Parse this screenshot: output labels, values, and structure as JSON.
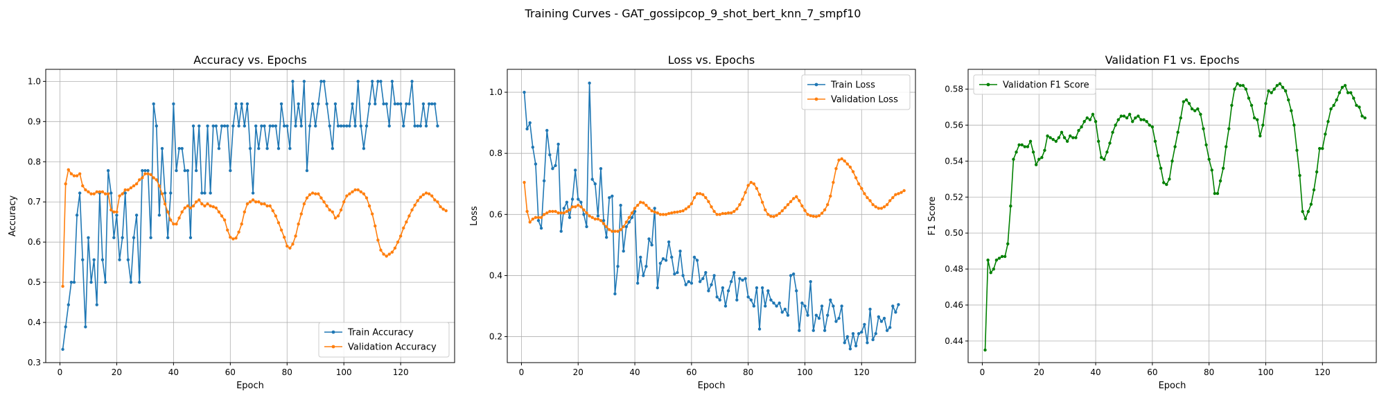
{
  "figure": {
    "suptitle": "Training Curves - GAT_gossipcop_9_shot_bert_knn_7_smpf10"
  },
  "chart_data": [
    {
      "type": "line",
      "title": "Accuracy vs. Epochs",
      "xlabel": "Epoch",
      "ylabel": "Accuracy",
      "xlim": [
        -5,
        139
      ],
      "ylim": [
        0.3,
        1.03
      ],
      "xticks": [
        0,
        20,
        40,
        60,
        80,
        100,
        120
      ],
      "yticks": [
        0.3,
        0.4,
        0.5,
        0.6,
        0.7,
        0.8,
        0.9,
        1.0
      ],
      "ytick_labels": [
        "0.3",
        "0.4",
        "0.5",
        "0.6",
        "0.7",
        "0.8",
        "0.9",
        "1.0"
      ],
      "grid": true,
      "legend": "lower-right",
      "series": [
        {
          "name": "Train Accuracy",
          "color": "#1f77b4",
          "values": [
            0.333,
            0.389,
            0.444,
            0.5,
            0.5,
            0.667,
            0.722,
            0.556,
            0.389,
            0.611,
            0.5,
            0.556,
            0.444,
            0.722,
            0.556,
            0.5,
            0.778,
            0.722,
            0.611,
            0.667,
            0.556,
            0.611,
            0.722,
            0.556,
            0.5,
            0.611,
            0.667,
            0.5,
            0.778,
            0.778,
            0.778,
            0.611,
            0.944,
            0.889,
            0.667,
            0.833,
            0.722,
            0.611,
            0.722,
            0.944,
            0.778,
            0.833,
            0.833,
            0.778,
            0.778,
            0.611,
            0.889,
            0.778,
            0.889,
            0.722,
            0.722,
            0.889,
            0.722,
            0.889,
            0.889,
            0.833,
            0.889,
            0.889,
            0.889,
            0.778,
            0.889,
            0.944,
            0.889,
            0.944,
            0.889,
            0.944,
            0.833,
            0.722,
            0.889,
            0.833,
            0.889,
            0.889,
            0.833,
            0.889,
            0.889,
            0.889,
            0.833,
            0.944,
            0.889,
            0.889,
            0.833,
            1.0,
            0.889,
            0.944,
            0.889,
            1.0,
            0.778,
            0.889,
            0.944,
            0.889,
            0.944,
            1.0,
            1.0,
            0.944,
            0.889,
            0.833,
            0.944,
            0.889,
            0.889,
            0.889,
            0.889,
            0.889,
            0.944,
            0.889,
            1.0,
            0.889,
            0.833,
            0.889,
            0.944,
            1.0,
            0.944,
            1.0,
            1.0,
            0.944,
            0.944,
            0.889,
            1.0,
            0.944,
            0.944,
            0.944,
            0.889,
            0.944,
            0.944,
            1.0,
            0.889,
            0.889,
            0.889,
            0.944,
            0.889,
            0.944,
            0.944,
            0.944,
            0.889
          ]
        },
        {
          "name": "Validation Accuracy",
          "color": "#ff7f0e",
          "values": [
            0.49,
            0.745,
            0.78,
            0.77,
            0.765,
            0.765,
            0.77,
            0.74,
            0.73,
            0.725,
            0.72,
            0.72,
            0.725,
            0.725,
            0.725,
            0.72,
            0.72,
            0.68,
            0.675,
            0.675,
            0.715,
            0.72,
            0.73,
            0.73,
            0.735,
            0.74,
            0.745,
            0.755,
            0.76,
            0.77,
            0.77,
            0.768,
            0.76,
            0.755,
            0.74,
            0.72,
            0.695,
            0.675,
            0.655,
            0.645,
            0.645,
            0.66,
            0.675,
            0.685,
            0.69,
            0.685,
            0.69,
            0.7,
            0.705,
            0.695,
            0.69,
            0.695,
            0.69,
            0.688,
            0.685,
            0.675,
            0.665,
            0.655,
            0.63,
            0.612,
            0.608,
            0.61,
            0.625,
            0.645,
            0.675,
            0.695,
            0.7,
            0.705,
            0.7,
            0.7,
            0.695,
            0.695,
            0.69,
            0.69,
            0.678,
            0.665,
            0.648,
            0.63,
            0.612,
            0.59,
            0.585,
            0.595,
            0.615,
            0.645,
            0.67,
            0.695,
            0.71,
            0.718,
            0.722,
            0.72,
            0.72,
            0.71,
            0.7,
            0.69,
            0.68,
            0.675,
            0.66,
            0.665,
            0.68,
            0.7,
            0.715,
            0.72,
            0.725,
            0.73,
            0.73,
            0.725,
            0.72,
            0.71,
            0.69,
            0.67,
            0.64,
            0.605,
            0.58,
            0.57,
            0.565,
            0.57,
            0.575,
            0.585,
            0.6,
            0.615,
            0.635,
            0.65,
            0.665,
            0.68,
            0.692,
            0.703,
            0.712,
            0.718,
            0.722,
            0.72,
            0.715,
            0.705,
            0.7,
            0.688,
            0.682,
            0.678
          ]
        }
      ]
    },
    {
      "type": "line",
      "title": "Loss vs. Epochs",
      "xlabel": "Epoch",
      "ylabel": "Loss",
      "xlim": [
        -5,
        139
      ],
      "ylim": [
        0.115,
        1.075
      ],
      "xticks": [
        0,
        20,
        40,
        60,
        80,
        100,
        120
      ],
      "yticks": [
        0.2,
        0.4,
        0.6,
        0.8,
        1.0
      ],
      "ytick_labels": [
        "0.2",
        "0.4",
        "0.6",
        "0.8",
        "1.0"
      ],
      "grid": true,
      "legend": "upper-right",
      "series": [
        {
          "name": "Train Loss",
          "color": "#1f77b4",
          "values": [
            1.0,
            0.88,
            0.9,
            0.82,
            0.765,
            0.58,
            0.555,
            0.71,
            0.875,
            0.795,
            0.75,
            0.76,
            0.83,
            0.545,
            0.62,
            0.64,
            0.59,
            0.65,
            0.745,
            0.65,
            0.64,
            0.6,
            0.56,
            1.03,
            0.715,
            0.7,
            0.595,
            0.75,
            0.58,
            0.525,
            0.655,
            0.66,
            0.34,
            0.43,
            0.63,
            0.48,
            0.56,
            0.575,
            0.59,
            0.61,
            0.375,
            0.46,
            0.4,
            0.43,
            0.52,
            0.5,
            0.62,
            0.36,
            0.44,
            0.455,
            0.45,
            0.51,
            0.46,
            0.405,
            0.41,
            0.48,
            0.4,
            0.37,
            0.38,
            0.375,
            0.46,
            0.45,
            0.38,
            0.39,
            0.41,
            0.35,
            0.37,
            0.4,
            0.33,
            0.32,
            0.36,
            0.3,
            0.35,
            0.38,
            0.41,
            0.32,
            0.39,
            0.385,
            0.39,
            0.33,
            0.32,
            0.3,
            0.36,
            0.225,
            0.36,
            0.3,
            0.35,
            0.32,
            0.31,
            0.3,
            0.31,
            0.28,
            0.29,
            0.27,
            0.4,
            0.405,
            0.35,
            0.22,
            0.31,
            0.3,
            0.27,
            0.38,
            0.22,
            0.27,
            0.26,
            0.3,
            0.22,
            0.27,
            0.32,
            0.3,
            0.25,
            0.26,
            0.3,
            0.18,
            0.2,
            0.16,
            0.21,
            0.17,
            0.21,
            0.215,
            0.24,
            0.18,
            0.29,
            0.19,
            0.21,
            0.265,
            0.25,
            0.26,
            0.22,
            0.23,
            0.3,
            0.28,
            0.305
          ]
        },
        {
          "name": "Validation Loss",
          "color": "#ff7f0e",
          "values": [
            0.705,
            0.61,
            0.575,
            0.585,
            0.59,
            0.59,
            0.59,
            0.6,
            0.605,
            0.61,
            0.61,
            0.61,
            0.605,
            0.605,
            0.605,
            0.61,
            0.615,
            0.625,
            0.625,
            0.63,
            0.625,
            0.615,
            0.605,
            0.595,
            0.59,
            0.585,
            0.585,
            0.58,
            0.57,
            0.56,
            0.55,
            0.545,
            0.545,
            0.545,
            0.55,
            0.56,
            0.575,
            0.59,
            0.605,
            0.62,
            0.63,
            0.64,
            0.638,
            0.63,
            0.62,
            0.612,
            0.608,
            0.605,
            0.6,
            0.6,
            0.6,
            0.603,
            0.605,
            0.607,
            0.608,
            0.61,
            0.612,
            0.618,
            0.625,
            0.635,
            0.655,
            0.668,
            0.668,
            0.665,
            0.655,
            0.642,
            0.625,
            0.61,
            0.6,
            0.6,
            0.603,
            0.603,
            0.605,
            0.605,
            0.61,
            0.618,
            0.632,
            0.65,
            0.672,
            0.695,
            0.705,
            0.7,
            0.685,
            0.665,
            0.64,
            0.615,
            0.6,
            0.594,
            0.593,
            0.597,
            0.603,
            0.612,
            0.622,
            0.632,
            0.642,
            0.652,
            0.658,
            0.645,
            0.628,
            0.613,
            0.6,
            0.596,
            0.594,
            0.593,
            0.596,
            0.604,
            0.615,
            0.632,
            0.66,
            0.705,
            0.75,
            0.778,
            0.782,
            0.775,
            0.765,
            0.755,
            0.74,
            0.72,
            0.7,
            0.685,
            0.668,
            0.655,
            0.645,
            0.632,
            0.625,
            0.62,
            0.62,
            0.625,
            0.632,
            0.645,
            0.655,
            0.665,
            0.668,
            0.672,
            0.678
          ]
        }
      ]
    },
    {
      "type": "line",
      "title": "Validation F1 vs. Epochs",
      "xlabel": "Epoch",
      "ylabel": "F1 Score",
      "xlim": [
        -5,
        139
      ],
      "ylim": [
        0.428,
        0.591
      ],
      "xticks": [
        0,
        20,
        40,
        60,
        80,
        100,
        120
      ],
      "yticks": [
        0.44,
        0.46,
        0.48,
        0.5,
        0.52,
        0.54,
        0.56,
        0.58
      ],
      "ytick_labels": [
        "0.44",
        "0.46",
        "0.48",
        "0.50",
        "0.52",
        "0.54",
        "0.56",
        "0.58"
      ],
      "grid": true,
      "legend": "upper-left",
      "series": [
        {
          "name": "Validation F1 Score",
          "color": "#008000",
          "values": [
            0.435,
            0.485,
            0.478,
            0.48,
            0.485,
            0.486,
            0.487,
            0.487,
            0.494,
            0.515,
            0.541,
            0.545,
            0.549,
            0.549,
            0.548,
            0.548,
            0.551,
            0.545,
            0.538,
            0.541,
            0.542,
            0.546,
            0.554,
            0.553,
            0.552,
            0.551,
            0.553,
            0.556,
            0.553,
            0.551,
            0.554,
            0.553,
            0.553,
            0.557,
            0.559,
            0.562,
            0.564,
            0.563,
            0.566,
            0.562,
            0.551,
            0.542,
            0.541,
            0.545,
            0.55,
            0.556,
            0.56,
            0.563,
            0.565,
            0.565,
            0.564,
            0.566,
            0.562,
            0.564,
            0.565,
            0.563,
            0.563,
            0.562,
            0.56,
            0.559,
            0.551,
            0.543,
            0.536,
            0.528,
            0.527,
            0.53,
            0.54,
            0.548,
            0.556,
            0.564,
            0.573,
            0.574,
            0.572,
            0.569,
            0.568,
            0.569,
            0.566,
            0.558,
            0.549,
            0.541,
            0.535,
            0.522,
            0.522,
            0.529,
            0.536,
            0.548,
            0.558,
            0.571,
            0.58,
            0.583,
            0.582,
            0.582,
            0.58,
            0.575,
            0.571,
            0.564,
            0.563,
            0.554,
            0.56,
            0.572,
            0.579,
            0.578,
            0.58,
            0.582,
            0.583,
            0.581,
            0.579,
            0.574,
            0.568,
            0.56,
            0.546,
            0.532,
            0.512,
            0.508,
            0.512,
            0.516,
            0.524,
            0.534,
            0.547,
            0.547,
            0.555,
            0.562,
            0.569,
            0.571,
            0.574,
            0.578,
            0.581,
            0.582,
            0.578,
            0.578,
            0.575,
            0.571,
            0.57,
            0.565,
            0.564
          ]
        }
      ]
    }
  ]
}
